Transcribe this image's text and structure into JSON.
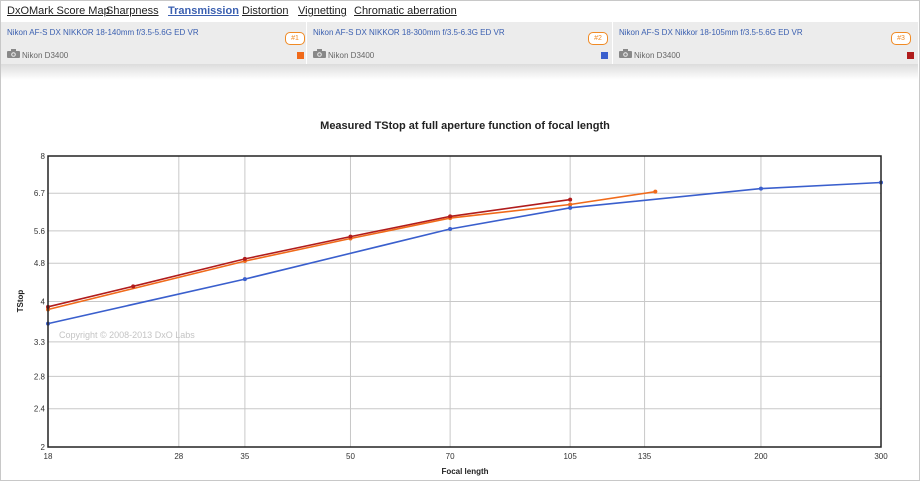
{
  "tabs": [
    {
      "label": "DxOMark Score Map",
      "active": false
    },
    {
      "label": "Sharpness",
      "active": false
    },
    {
      "label": "Transmission",
      "active": true
    },
    {
      "label": "Distortion",
      "active": false
    },
    {
      "label": "Vignetting",
      "active": false
    },
    {
      "label": "Chromatic aberration",
      "active": false
    }
  ],
  "lenses": [
    {
      "name": "Nikon AF-S DX NIKKOR 18-140mm f/3.5-5.6G ED VR",
      "badge": "#1",
      "camera": "Nikon D3400",
      "color": "#f06a1a",
      "camera_icon": "camera-icon"
    },
    {
      "name": "Nikon AF-S DX NIKKOR 18-300mm f/3.5-6.3G ED VR",
      "badge": "#2",
      "camera": "Nikon D3400",
      "color": "#3a5fcd",
      "camera_icon": "camera-icon"
    },
    {
      "name": "Nikon AF-S DX Nikkor 18-105mm f/3.5-5.6G ED VR",
      "badge": "#3",
      "camera": "Nikon D3400",
      "color": "#b01c1c",
      "camera_icon": "camera-icon"
    }
  ],
  "chart_data": {
    "type": "line",
    "title": "Measured TStop at full aperture function of focal length",
    "xlabel": "Focal length",
    "ylabel": "TStop",
    "x_scale": "log",
    "y_scale": "log",
    "xlim": [
      18,
      300
    ],
    "ylim": [
      2,
      8
    ],
    "xticks": [
      18,
      28,
      35,
      50,
      70,
      105,
      135,
      200,
      300
    ],
    "yticks": [
      2,
      2.4,
      2.8,
      3.3,
      4,
      4.8,
      5.6,
      6.7,
      8
    ],
    "grid": true,
    "watermark": "Copyright © 2008-2013 DxO Labs",
    "series": [
      {
        "name": "Nikon AF-S DX NIKKOR 18-140mm f/3.5-5.6G ED VR",
        "color": "#f06a1a",
        "x": [
          18,
          35,
          50,
          70,
          105,
          140
        ],
        "y": [
          3.85,
          4.85,
          5.4,
          5.95,
          6.35,
          6.75
        ]
      },
      {
        "name": "Nikon AF-S DX NIKKOR 18-300mm f/3.5-6.3G ED VR",
        "color": "#3a5fcd",
        "x": [
          18,
          35,
          70,
          105,
          200,
          300
        ],
        "y": [
          3.6,
          4.45,
          5.65,
          6.25,
          6.85,
          7.05
        ]
      },
      {
        "name": "Nikon AF-S DX Nikkor 18-105mm f/3.5-5.6G ED VR",
        "color": "#b01c1c",
        "x": [
          18,
          24,
          35,
          50,
          70,
          105
        ],
        "y": [
          3.9,
          4.3,
          4.9,
          5.45,
          6.0,
          6.5
        ]
      }
    ]
  }
}
